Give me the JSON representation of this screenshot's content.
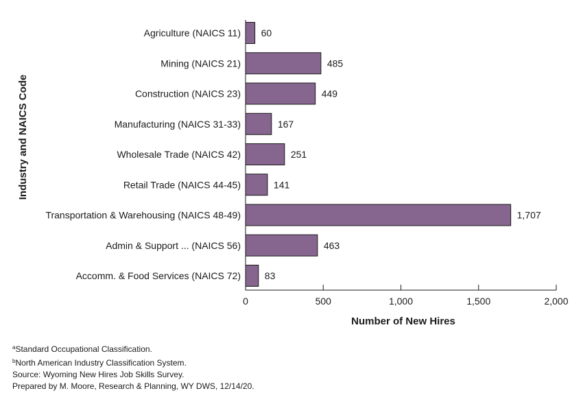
{
  "chart_data": {
    "type": "bar",
    "orientation": "horizontal",
    "categories": [
      "Agriculture (NAICS 11)",
      "Mining (NAICS 21)",
      "Construction (NAICS 23)",
      "Manufacturing (NAICS 31-33)",
      "Wholesale Trade (NAICS 42)",
      "Retail Trade (NAICS 44-45)",
      "Transportation & Warehousing (NAICS 48-49)",
      "Admin & Support ... (NAICS 56)",
      "Accomm. & Food Services (NAICS 72)"
    ],
    "values": [
      60,
      485,
      449,
      167,
      251,
      141,
      1707,
      463,
      83
    ],
    "value_labels": [
      "60",
      "485",
      "449",
      "167",
      "251",
      "141",
      "1,707",
      "463",
      "83"
    ],
    "xlabel": "Number of New Hires",
    "ylabel": "Industry and NAICS Code",
    "xlim": [
      0,
      2000
    ],
    "xticks": [
      0,
      500,
      1000,
      1500,
      2000
    ],
    "xtick_labels": [
      "0",
      "500",
      "1,000",
      "1,500",
      "2,000"
    ],
    "grid": false,
    "bar_color": "#86658f",
    "bar_edge_color": "#1a1a1a"
  },
  "footnotes": {
    "a_marker": "a",
    "a_text": "Standard Occupational Classification.",
    "b_marker": "b",
    "b_text": "North American Industry Classification System.",
    "source": "Source: Wyoming New Hires Job Skills Survey.",
    "prepared": "Prepared by M. Moore, Research & Planning, WY DWS, 12/14/20."
  }
}
